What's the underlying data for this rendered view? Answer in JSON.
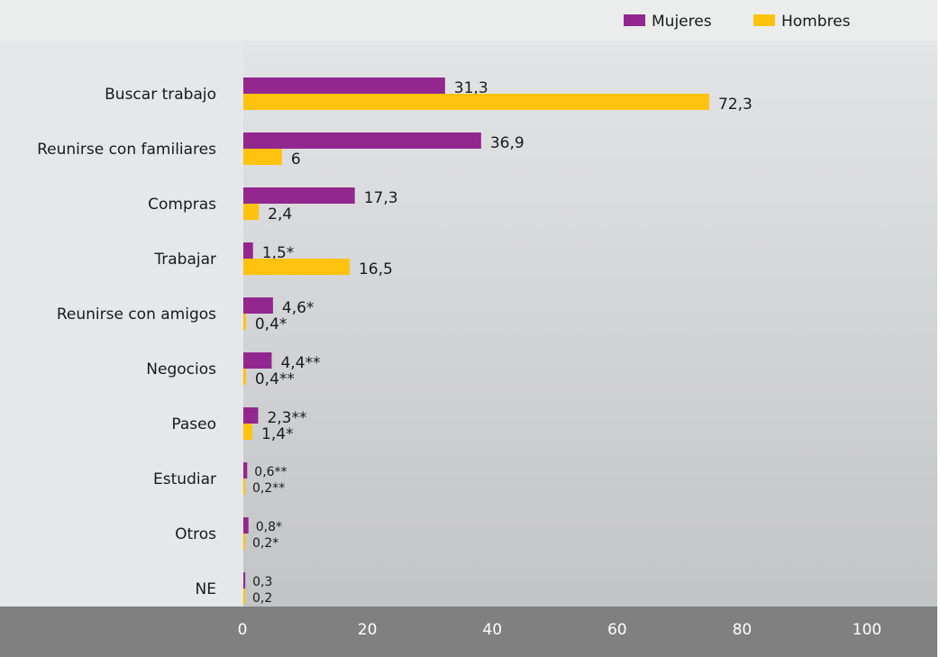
{
  "chart_data": {
    "type": "bar",
    "orientation": "horizontal",
    "title": "",
    "xlabel": "",
    "ylabel": "",
    "xlim": [
      0,
      100
    ],
    "x_ticks": [
      "0",
      "20",
      "40",
      "60",
      "80",
      "100"
    ],
    "legend_position": "top-right",
    "categories": [
      "Buscar trabajo",
      "Reunirse con familiares",
      "Compras",
      "Trabajar",
      "Reunirse con amigos",
      "Negocios",
      "Paseo",
      "Estudiar",
      "Otros",
      "NE"
    ],
    "series": [
      {
        "name": "Mujeres",
        "color": "#92278f",
        "values": [
          31.3,
          36.9,
          17.3,
          1.5,
          4.6,
          4.4,
          2.3,
          0.6,
          0.8,
          0.3
        ],
        "labels": [
          "31,3",
          "36,9",
          "17,3",
          "1,5*",
          "4,6*",
          "4,4**",
          "2,3**",
          "0,6**",
          "0,8*",
          "0,3"
        ]
      },
      {
        "name": "Hombres",
        "color": "#ffc20e",
        "values": [
          72.3,
          6,
          2.4,
          16.5,
          0.4,
          0.4,
          1.4,
          0.2,
          0.2,
          0.2
        ],
        "labels": [
          "72,3",
          "6",
          "2,4",
          "16,5",
          "0,4*",
          "0,4**",
          "1,4*",
          "0,2**",
          "0,2*",
          "0,2"
        ]
      }
    ]
  }
}
